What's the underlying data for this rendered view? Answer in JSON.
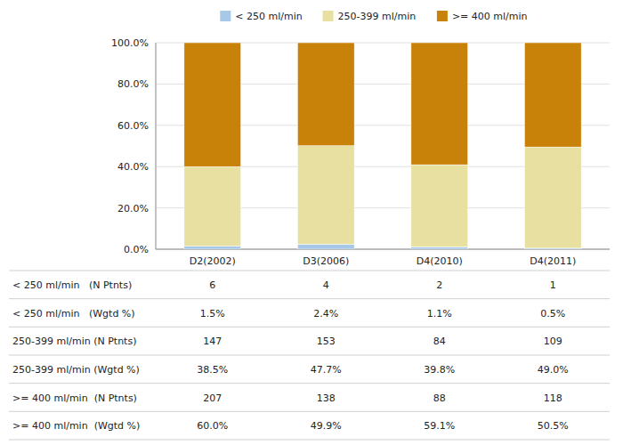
{
  "chart_data": {
    "type": "bar",
    "stacked": true,
    "grid": true,
    "legend": "top",
    "categories": [
      "D2(2002)",
      "D3(2006)",
      "D4(2010)",
      "D4(2011)"
    ],
    "series": [
      {
        "name": "< 250 ml/min",
        "color": "#A8C8E8",
        "values": [
          1.5,
          2.4,
          1.1,
          0.5
        ]
      },
      {
        "name": "250-399 ml/min",
        "color": "#E8E0A0",
        "values": [
          38.5,
          47.7,
          39.8,
          49.0
        ]
      },
      {
        "name": ">= 400 ml/min",
        "color": "#C8820A",
        "values": [
          60.0,
          49.9,
          59.1,
          50.5
        ]
      }
    ],
    "ylim": [
      0,
      100
    ],
    "yticks": [
      {
        "value": 0,
        "label": "0.0%"
      },
      {
        "value": 20,
        "label": "20.0%"
      },
      {
        "value": 40,
        "label": "40.0%"
      },
      {
        "value": 60,
        "label": "60.0%"
      },
      {
        "value": 80,
        "label": "80.0%"
      },
      {
        "value": 100,
        "label": "100.0%"
      }
    ],
    "table_rows": [
      [
        "< 250 ml/min   (N Ptnts)",
        "6",
        "4",
        "2",
        "1"
      ],
      [
        "< 250 ml/min   (Wgtd %)",
        "1.5%",
        "2.4%",
        "1.1%",
        "0.5%"
      ],
      [
        "250-399 ml/min (N Ptnts)",
        "147",
        "153",
        "84",
        "109"
      ],
      [
        "250-399 ml/min (Wgtd %)",
        "38.5%",
        "47.7%",
        "39.8%",
        "49.0%"
      ],
      [
        ">= 400 ml/min  (N Ptnts)",
        "207",
        "138",
        "88",
        "118"
      ],
      [
        ">= 400 ml/min  (Wgtd %)",
        "60.0%",
        "49.9%",
        "59.1%",
        "50.5%"
      ]
    ]
  }
}
